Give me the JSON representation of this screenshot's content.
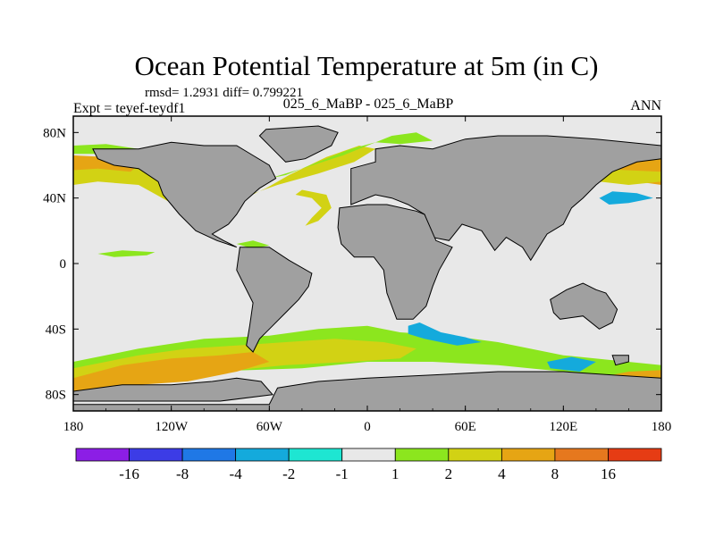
{
  "chart_data": {
    "type": "heatmap",
    "title": "Ocean Potential Temperature at 5m (in C)",
    "stats_label": "rmsd= 1.2931 diff= 0.799221",
    "experiment_label": "Expt = teyef-teydf1",
    "case_label": "025_6_MaBP - 025_6_MaBP",
    "season_label": "ANN",
    "x_range": [
      -180,
      180
    ],
    "y_range": [
      -90,
      90
    ],
    "x_ticks": [
      {
        "value": -180,
        "label": "180"
      },
      {
        "value": -120,
        "label": "120W"
      },
      {
        "value": -60,
        "label": "60W"
      },
      {
        "value": 0,
        "label": "0"
      },
      {
        "value": 60,
        "label": "60E"
      },
      {
        "value": 120,
        "label": "120E"
      },
      {
        "value": 180,
        "label": "180"
      }
    ],
    "y_ticks": [
      {
        "value": 80,
        "label": "80N"
      },
      {
        "value": 40,
        "label": "40N"
      },
      {
        "value": 0,
        "label": "0"
      },
      {
        "value": -40,
        "label": "40S"
      },
      {
        "value": -80,
        "label": "80S"
      }
    ],
    "colorbar": {
      "colors": [
        "#8c1ee6",
        "#3c3ce6",
        "#1f78e6",
        "#14aadc",
        "#1ee6d2",
        "#e8e8e8",
        "#8ce61e",
        "#d2d214",
        "#e6a514",
        "#e6781e",
        "#e63c14"
      ],
      "labels": [
        "-16",
        "-8",
        "-4",
        "-2",
        "-1",
        "1",
        "2",
        "4",
        "8",
        "16"
      ]
    },
    "land_color": "#a0a0a0",
    "background_color": "#e8e8e8",
    "regions": [
      {
        "name": "north-pacific-band",
        "color": "#d2d214",
        "points": [
          [
            -180,
            66
          ],
          [
            -155,
            64
          ],
          [
            -135,
            58
          ],
          [
            -125,
            50
          ],
          [
            -118,
            40
          ],
          [
            -122,
            38
          ],
          [
            -140,
            48
          ],
          [
            -165,
            50
          ],
          [
            -180,
            48
          ]
        ]
      },
      {
        "name": "north-pacific-warm",
        "color": "#e6a514",
        "points": [
          [
            -180,
            66
          ],
          [
            -160,
            65
          ],
          [
            -140,
            60
          ],
          [
            -145,
            56
          ],
          [
            -165,
            58
          ],
          [
            -180,
            57
          ]
        ]
      },
      {
        "name": "north-pacific-green-rim",
        "color": "#8ce61e",
        "points": [
          [
            -180,
            72
          ],
          [
            -160,
            73
          ],
          [
            -140,
            70
          ],
          [
            -155,
            67
          ],
          [
            -180,
            67
          ]
        ]
      },
      {
        "name": "west-pacific-warm",
        "color": "#e6a514",
        "points": [
          [
            140,
            60
          ],
          [
            180,
            64
          ],
          [
            180,
            48
          ],
          [
            165,
            50
          ],
          [
            150,
            55
          ]
        ]
      },
      {
        "name": "west-pacific-band",
        "color": "#d2d214",
        "points": [
          [
            138,
            58
          ],
          [
            180,
            56
          ],
          [
            180,
            50
          ],
          [
            160,
            48
          ],
          [
            142,
            50
          ]
        ]
      },
      {
        "name": "west-pacific-cool",
        "color": "#14aadc",
        "points": [
          [
            142,
            40
          ],
          [
            150,
            44
          ],
          [
            165,
            43
          ],
          [
            175,
            40
          ],
          [
            160,
            37
          ],
          [
            148,
            36
          ]
        ]
      },
      {
        "name": "north-atlantic-band",
        "color": "#d2d214",
        "points": [
          [
            -72,
            42
          ],
          [
            -55,
            48
          ],
          [
            -30,
            55
          ],
          [
            -8,
            62
          ],
          [
            5,
            70
          ],
          [
            -5,
            72
          ],
          [
            -25,
            65
          ],
          [
            -48,
            54
          ],
          [
            -62,
            46
          ],
          [
            -75,
            40
          ]
        ]
      },
      {
        "name": "north-atlantic-green",
        "color": "#8ce61e",
        "points": [
          [
            -60,
            52
          ],
          [
            -40,
            58
          ],
          [
            -15,
            66
          ],
          [
            0,
            72
          ],
          [
            15,
            78
          ],
          [
            30,
            80
          ],
          [
            40,
            75
          ],
          [
            20,
            73
          ],
          [
            5,
            74
          ],
          [
            -10,
            70
          ],
          [
            -30,
            62
          ],
          [
            -50,
            54
          ]
        ]
      },
      {
        "name": "gulf-stream-loop",
        "color": "#d2d214",
        "points": [
          [
            -40,
            45
          ],
          [
            -25,
            42
          ],
          [
            -22,
            34
          ],
          [
            -30,
            26
          ],
          [
            -38,
            23
          ],
          [
            -34,
            28
          ],
          [
            -28,
            34
          ],
          [
            -34,
            40
          ],
          [
            -44,
            42
          ]
        ]
      },
      {
        "name": "equatorial-pacific-green",
        "color": "#8ce61e",
        "points": [
          [
            -165,
            6
          ],
          [
            -150,
            8
          ],
          [
            -130,
            7
          ],
          [
            -135,
            5
          ],
          [
            -155,
            4
          ]
        ]
      },
      {
        "name": "equatorial-atlantic-green",
        "color": "#8ce61e",
        "points": [
          [
            -80,
            12
          ],
          [
            -70,
            14
          ],
          [
            -60,
            11
          ],
          [
            -70,
            9
          ]
        ]
      },
      {
        "name": "southern-ocean-green",
        "color": "#8ce61e",
        "points": [
          [
            -180,
            -60
          ],
          [
            -140,
            -52
          ],
          [
            -100,
            -46
          ],
          [
            -60,
            -44
          ],
          [
            -30,
            -40
          ],
          [
            0,
            -38
          ],
          [
            20,
            -42
          ],
          [
            50,
            -44
          ],
          [
            80,
            -48
          ],
          [
            120,
            -56
          ],
          [
            180,
            -62
          ],
          [
            180,
            -70
          ],
          [
            120,
            -66
          ],
          [
            80,
            -62
          ],
          [
            40,
            -60
          ],
          [
            0,
            -60
          ],
          [
            -40,
            -64
          ],
          [
            -100,
            -66
          ],
          [
            -180,
            -68
          ]
        ]
      },
      {
        "name": "southern-ocean-yellow",
        "color": "#d2d214",
        "points": [
          [
            -180,
            -64
          ],
          [
            -140,
            -56
          ],
          [
            -110,
            -52
          ],
          [
            -80,
            -50
          ],
          [
            -50,
            -48
          ],
          [
            -20,
            -46
          ],
          [
            10,
            -48
          ],
          [
            30,
            -52
          ],
          [
            20,
            -58
          ],
          [
            -10,
            -60
          ],
          [
            -50,
            -62
          ],
          [
            -110,
            -68
          ],
          [
            -180,
            -72
          ]
        ]
      },
      {
        "name": "southern-ocean-warm",
        "color": "#e6a514",
        "points": [
          [
            -180,
            -70
          ],
          [
            -150,
            -62
          ],
          [
            -120,
            -58
          ],
          [
            -90,
            -56
          ],
          [
            -70,
            -54
          ],
          [
            -60,
            -60
          ],
          [
            -80,
            -66
          ],
          [
            -110,
            -72
          ],
          [
            -140,
            -74
          ],
          [
            -180,
            -78
          ]
        ]
      },
      {
        "name": "southern-ocean-warm-east",
        "color": "#e6a514",
        "points": [
          [
            140,
            -70
          ],
          [
            160,
            -66
          ],
          [
            180,
            -65
          ],
          [
            180,
            -80
          ],
          [
            150,
            -80
          ]
        ]
      },
      {
        "name": "agulhas-cool",
        "color": "#14aadc",
        "points": [
          [
            25,
            -38
          ],
          [
            32,
            -36
          ],
          [
            45,
            -42
          ],
          [
            60,
            -45
          ],
          [
            70,
            -48
          ],
          [
            55,
            -50
          ],
          [
            35,
            -46
          ],
          [
            25,
            -43
          ]
        ]
      },
      {
        "name": "tasman-cool",
        "color": "#14aadc",
        "points": [
          [
            110,
            -60
          ],
          [
            125,
            -57
          ],
          [
            140,
            -60
          ],
          [
            130,
            -66
          ],
          [
            112,
            -64
          ]
        ]
      }
    ],
    "land": [
      {
        "name": "north-america",
        "points": [
          [
            -168,
            70
          ],
          [
            -140,
            70
          ],
          [
            -120,
            74
          ],
          [
            -100,
            72
          ],
          [
            -80,
            72
          ],
          [
            -70,
            66
          ],
          [
            -60,
            60
          ],
          [
            -56,
            52
          ],
          [
            -66,
            46
          ],
          [
            -75,
            38
          ],
          [
            -80,
            30
          ],
          [
            -85,
            24
          ],
          [
            -95,
            18
          ],
          [
            -88,
            14
          ],
          [
            -80,
            10
          ],
          [
            -92,
            14
          ],
          [
            -105,
            20
          ],
          [
            -115,
            30
          ],
          [
            -120,
            36
          ],
          [
            -125,
            42
          ],
          [
            -128,
            50
          ],
          [
            -140,
            58
          ],
          [
            -155,
            60
          ],
          [
            -165,
            64
          ]
        ]
      },
      {
        "name": "greenland",
        "points": [
          [
            -62,
            82
          ],
          [
            -30,
            84
          ],
          [
            -18,
            80
          ],
          [
            -22,
            72
          ],
          [
            -38,
            64
          ],
          [
            -50,
            62
          ],
          [
            -58,
            70
          ],
          [
            -66,
            78
          ]
        ]
      },
      {
        "name": "south-america",
        "points": [
          [
            -78,
            10
          ],
          [
            -60,
            10
          ],
          [
            -48,
            2
          ],
          [
            -34,
            -6
          ],
          [
            -36,
            -14
          ],
          [
            -42,
            -22
          ],
          [
            -50,
            -30
          ],
          [
            -58,
            -38
          ],
          [
            -66,
            -46
          ],
          [
            -70,
            -54
          ],
          [
            -74,
            -50
          ],
          [
            -72,
            -38
          ],
          [
            -70,
            -24
          ],
          [
            -76,
            -12
          ],
          [
            -80,
            -4
          ]
        ]
      },
      {
        "name": "eurasia",
        "points": [
          [
            -10,
            36
          ],
          [
            -10,
            58
          ],
          [
            5,
            62
          ],
          [
            5,
            70
          ],
          [
            20,
            72
          ],
          [
            40,
            70
          ],
          [
            60,
            76
          ],
          [
            80,
            78
          ],
          [
            110,
            78
          ],
          [
            140,
            76
          ],
          [
            180,
            72
          ],
          [
            180,
            64
          ],
          [
            165,
            62
          ],
          [
            150,
            56
          ],
          [
            140,
            48
          ],
          [
            132,
            40
          ],
          [
            125,
            34
          ],
          [
            120,
            24
          ],
          [
            110,
            18
          ],
          [
            105,
            10
          ],
          [
            100,
            2
          ],
          [
            95,
            10
          ],
          [
            85,
            16
          ],
          [
            78,
            8
          ],
          [
            70,
            20
          ],
          [
            58,
            24
          ],
          [
            50,
            14
          ],
          [
            40,
            16
          ],
          [
            35,
            30
          ],
          [
            25,
            36
          ],
          [
            15,
            40
          ],
          [
            5,
            42
          ]
        ]
      },
      {
        "name": "africa",
        "points": [
          [
            -17,
            34
          ],
          [
            0,
            36
          ],
          [
            12,
            36
          ],
          [
            30,
            32
          ],
          [
            35,
            30
          ],
          [
            42,
            14
          ],
          [
            52,
            10
          ],
          [
            44,
            -4
          ],
          [
            40,
            -14
          ],
          [
            36,
            -26
          ],
          [
            28,
            -34
          ],
          [
            18,
            -34
          ],
          [
            12,
            -18
          ],
          [
            10,
            -4
          ],
          [
            4,
            4
          ],
          [
            -8,
            4
          ],
          [
            -16,
            12
          ],
          [
            -18,
            22
          ]
        ]
      },
      {
        "name": "australia",
        "points": [
          [
            112,
            -22
          ],
          [
            122,
            -16
          ],
          [
            132,
            -12
          ],
          [
            140,
            -16
          ],
          [
            146,
            -18
          ],
          [
            153,
            -28
          ],
          [
            150,
            -36
          ],
          [
            142,
            -40
          ],
          [
            132,
            -32
          ],
          [
            118,
            -34
          ],
          [
            114,
            -30
          ]
        ]
      },
      {
        "name": "new-zealand",
        "points": [
          [
            150,
            -56
          ],
          [
            160,
            -56
          ],
          [
            160,
            -60
          ],
          [
            152,
            -62
          ]
        ]
      },
      {
        "name": "antarctica-west",
        "points": [
          [
            -180,
            -78
          ],
          [
            -150,
            -74
          ],
          [
            -120,
            -74
          ],
          [
            -95,
            -72
          ],
          [
            -80,
            -70
          ],
          [
            -65,
            -72
          ],
          [
            -58,
            -80
          ],
          [
            -90,
            -84
          ],
          [
            -140,
            -84
          ],
          [
            -180,
            -84
          ]
        ]
      },
      {
        "name": "antarctica-main",
        "points": [
          [
            -55,
            -76
          ],
          [
            -30,
            -72
          ],
          [
            0,
            -70
          ],
          [
            40,
            -68
          ],
          [
            80,
            -66
          ],
          [
            120,
            -66
          ],
          [
            150,
            -68
          ],
          [
            180,
            -70
          ],
          [
            180,
            -90
          ],
          [
            -180,
            -90
          ],
          [
            -180,
            -86
          ],
          [
            -60,
            -86
          ]
        ]
      }
    ]
  }
}
